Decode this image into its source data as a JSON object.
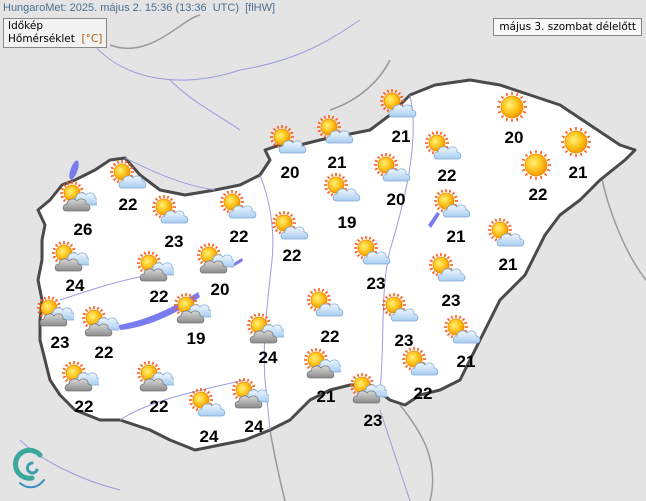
{
  "header": {
    "source_line": "HungaroMet: 2025. május 2. 15:36 (13:36  UTC)  [flHW]"
  },
  "legend": {
    "title": "Időkép",
    "parameter": "Hőmérséklet",
    "unit": "[°C]"
  },
  "date_label": "május 3. szombat délelőtt",
  "colors": {
    "land": "#ffffff",
    "outside": "#e4e4e4",
    "border": "#4a4a4a",
    "water": "#7b7bf0",
    "logo": "#3aa89a"
  },
  "icon_legend": {
    "sun": "sun-icon",
    "sun-cloud": "sun-light-cloud-icon",
    "sun-grey-cloud": "sun-grey-cloud-icon"
  },
  "stations": [
    {
      "temp": "22",
      "icon": "sun-cloud"
    },
    {
      "temp": "26",
      "icon": "sun-grey-cloud"
    },
    {
      "temp": "24",
      "icon": "sun-grey-cloud"
    },
    {
      "temp": "23",
      "icon": "sun-grey-cloud"
    },
    {
      "temp": "22",
      "icon": "sun-grey-cloud"
    },
    {
      "temp": "22",
      "icon": "sun-grey-cloud"
    },
    {
      "temp": "23",
      "icon": "sun-cloud"
    },
    {
      "temp": "22",
      "icon": "sun-grey-cloud"
    },
    {
      "temp": "20",
      "icon": "sun-grey-cloud"
    },
    {
      "temp": "19",
      "icon": "sun-grey-cloud"
    },
    {
      "temp": "22",
      "icon": "sun-cloud"
    },
    {
      "temp": "22",
      "icon": "sun-grey-cloud"
    },
    {
      "temp": "24",
      "icon": "sun-cloud"
    },
    {
      "temp": "24",
      "icon": "sun-grey-cloud"
    },
    {
      "temp": "24",
      "icon": "sun-grey-cloud"
    },
    {
      "temp": "20",
      "icon": "sun-cloud"
    },
    {
      "temp": "22",
      "icon": "sun-cloud"
    },
    {
      "temp": "21",
      "icon": "sun-cloud"
    },
    {
      "temp": "19",
      "icon": "sun-cloud"
    },
    {
      "temp": "21",
      "icon": "sun-grey-cloud"
    },
    {
      "temp": "22",
      "icon": "sun-cloud"
    },
    {
      "temp": "23",
      "icon": "sun-cloud"
    },
    {
      "temp": "23",
      "icon": "sun-grey-cloud"
    },
    {
      "temp": "21",
      "icon": "sun-cloud"
    },
    {
      "temp": "20",
      "icon": "sun-cloud"
    },
    {
      "temp": "22",
      "icon": "sun-cloud"
    },
    {
      "temp": "21",
      "icon": "sun-cloud"
    },
    {
      "temp": "23",
      "icon": "sun-cloud"
    },
    {
      "temp": "22",
      "icon": "sun-cloud"
    },
    {
      "temp": "23",
      "icon": "sun-cloud"
    },
    {
      "temp": "21",
      "icon": "sun-cloud"
    },
    {
      "temp": "21",
      "icon": "sun-cloud"
    },
    {
      "temp": "20",
      "icon": "sun"
    },
    {
      "temp": "22",
      "icon": "sun"
    },
    {
      "temp": "21",
      "icon": "sun"
    }
  ]
}
